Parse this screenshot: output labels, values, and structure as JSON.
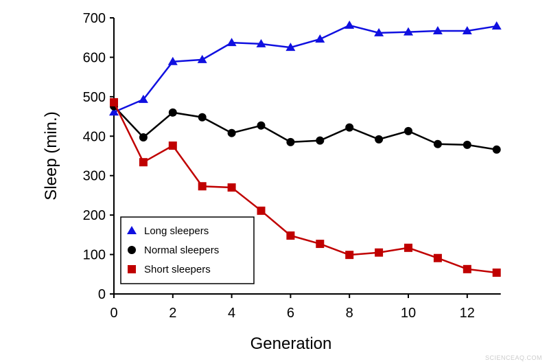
{
  "chart_data": {
    "type": "line",
    "title": "",
    "xlabel": "Generation",
    "ylabel": "Sleep (min.)",
    "xlim": [
      0,
      13
    ],
    "ylim": [
      0,
      700
    ],
    "xticks": [
      0,
      2,
      4,
      6,
      8,
      10,
      12
    ],
    "yticks": [
      0,
      100,
      200,
      300,
      400,
      500,
      600,
      700
    ],
    "grid": false,
    "legend_position": "bottom-left",
    "x": [
      0,
      1,
      2,
      3,
      4,
      5,
      6,
      7,
      8,
      9,
      10,
      11,
      12,
      13
    ],
    "series": [
      {
        "name": "Long sleepers",
        "marker": "triangle",
        "color": "#1010e0",
        "values": [
          461,
          493,
          589,
          594,
          637,
          634,
          625,
          646,
          681,
          662,
          664,
          667,
          667,
          679
        ]
      },
      {
        "name": "Normal sleepers",
        "marker": "circle",
        "color": "#000000",
        "values": [
          476,
          397,
          460,
          448,
          408,
          427,
          385,
          389,
          422,
          392,
          413,
          380,
          378,
          366
        ]
      },
      {
        "name": "Short sleepers",
        "marker": "square",
        "color": "#c00000",
        "values": [
          486,
          334,
          376,
          273,
          270,
          211,
          148,
          127,
          99,
          105,
          117,
          91,
          63,
          54
        ]
      }
    ]
  },
  "watermark": "SCIENCEAQ.COM"
}
